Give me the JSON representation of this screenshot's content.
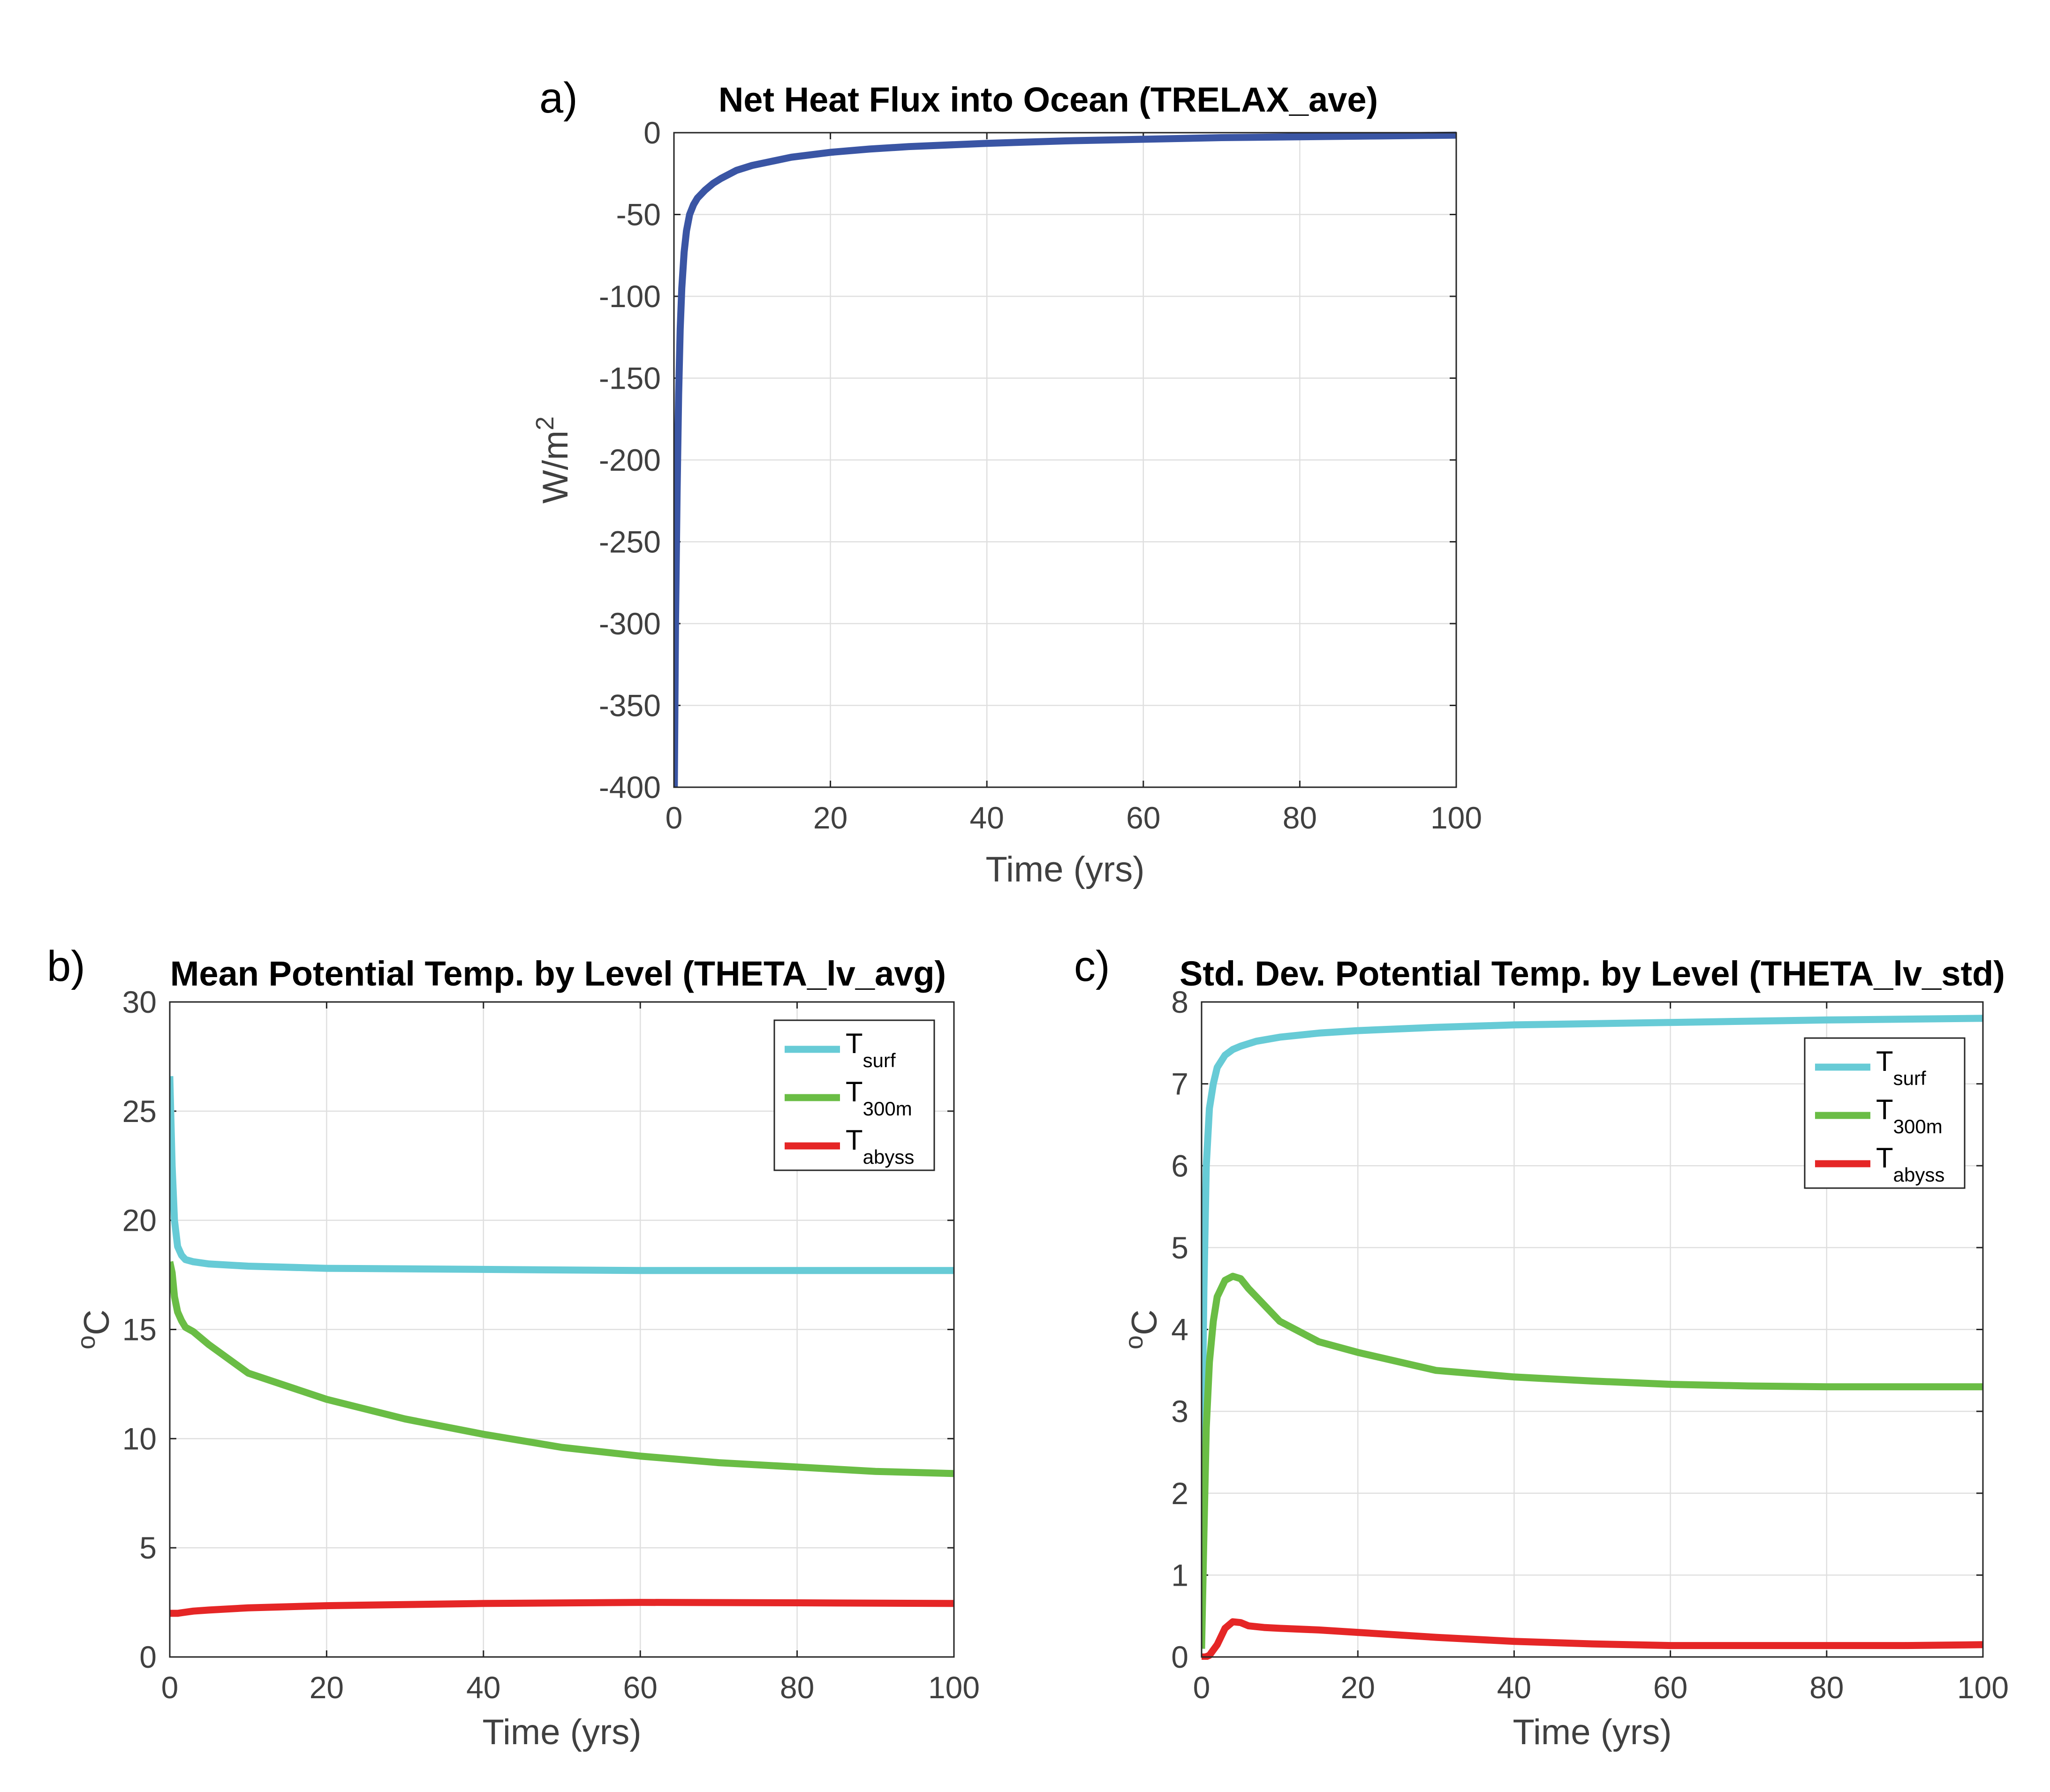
{
  "chart_data": [
    {
      "panel_label": "a)",
      "type": "line",
      "title": "Net Heat Flux into Ocean (TRELAX_ave)",
      "xlabel": "Time (yrs)",
      "ylabel": "W/m",
      "ylabel_sup": "2",
      "xlim": [
        0,
        100
      ],
      "ylim": [
        -400,
        0
      ],
      "xticks": [
        0,
        20,
        40,
        60,
        80,
        100
      ],
      "yticks": [
        0,
        -50,
        -100,
        -150,
        -200,
        -250,
        -300,
        -350,
        -400
      ],
      "grid": true,
      "legend": null,
      "series": [
        {
          "color": "#3a55a4",
          "x": [
            0.05,
            0.2,
            0.4,
            0.6,
            0.8,
            1,
            1.3,
            1.6,
            2,
            2.5,
            3,
            4,
            5,
            6,
            8,
            10,
            12,
            15,
            20,
            25,
            30,
            40,
            50,
            60,
            70,
            80,
            90,
            100
          ],
          "y": [
            -400,
            -300,
            -220,
            -160,
            -120,
            -95,
            -73,
            -60,
            -50,
            -44,
            -40,
            -35,
            -31,
            -28,
            -23,
            -20,
            -18,
            -15,
            -12,
            -10,
            -8.5,
            -6.5,
            -5,
            -4,
            -3,
            -2.5,
            -2,
            -1.5
          ]
        }
      ]
    },
    {
      "panel_label": "b)",
      "type": "line",
      "title": "Mean Potential Temp. by Level (THETA_lv_avg)",
      "xlabel": "Time (yrs)",
      "ylabel": "C",
      "ylabel_sup": "o",
      "xlim": [
        0,
        100
      ],
      "ylim": [
        0,
        30
      ],
      "xticks": [
        0,
        20,
        40,
        60,
        80,
        100
      ],
      "yticks": [
        0,
        5,
        10,
        15,
        20,
        25,
        30
      ],
      "grid": true,
      "legend": "top-right",
      "series": [
        {
          "name": "T",
          "name_sub": "surf",
          "color": "#67cbd6",
          "x": [
            0,
            0.3,
            0.6,
            1,
            1.5,
            2,
            3,
            5,
            10,
            20,
            40,
            60,
            80,
            100
          ],
          "y": [
            26.6,
            22.5,
            20,
            18.8,
            18.4,
            18.2,
            18.1,
            18,
            17.9,
            17.8,
            17.75,
            17.7,
            17.7,
            17.7
          ]
        },
        {
          "name": "T",
          "name_sub": "300m",
          "color": "#6abd45",
          "x": [
            0,
            0.3,
            0.6,
            1,
            1.5,
            2,
            3,
            5,
            10,
            20,
            30,
            40,
            50,
            60,
            70,
            80,
            90,
            100
          ],
          "y": [
            18.1,
            17.6,
            16.5,
            15.8,
            15.4,
            15.1,
            14.9,
            14.3,
            13,
            11.8,
            10.9,
            10.2,
            9.6,
            9.2,
            8.9,
            8.7,
            8.5,
            8.4
          ]
        },
        {
          "name": "T",
          "name_sub": "abyss",
          "color": "#e52626",
          "x": [
            0,
            1,
            2,
            3,
            5,
            10,
            20,
            40,
            60,
            80,
            100
          ],
          "y": [
            2.0,
            2.0,
            2.05,
            2.1,
            2.15,
            2.25,
            2.35,
            2.45,
            2.5,
            2.48,
            2.45
          ]
        }
      ]
    },
    {
      "panel_label": "c)",
      "type": "line",
      "title": "Std. Dev. Potential Temp. by Level (THETA_lv_std)",
      "xlabel": "Time (yrs)",
      "ylabel": "C",
      "ylabel_sup": "o",
      "xlim": [
        0,
        100
      ],
      "ylim": [
        0,
        8
      ],
      "xticks": [
        0,
        20,
        40,
        60,
        80,
        100
      ],
      "yticks": [
        0,
        1,
        2,
        3,
        4,
        5,
        6,
        7,
        8
      ],
      "grid": true,
      "legend": "top-right",
      "series": [
        {
          "name": "T",
          "name_sub": "surf",
          "color": "#67cbd6",
          "x": [
            0,
            0.3,
            0.6,
            1,
            1.5,
            2,
            3,
            4,
            5,
            7,
            10,
            15,
            20,
            30,
            40,
            60,
            80,
            100
          ],
          "y": [
            2.3,
            4.5,
            6.0,
            6.7,
            7.0,
            7.2,
            7.35,
            7.42,
            7.46,
            7.52,
            7.57,
            7.62,
            7.65,
            7.69,
            7.72,
            7.75,
            7.78,
            7.8
          ]
        },
        {
          "name": "T",
          "name_sub": "300m",
          "color": "#6abd45",
          "x": [
            0,
            0.3,
            0.6,
            1,
            1.5,
            2,
            3,
            4,
            5,
            6,
            8,
            10,
            15,
            20,
            30,
            40,
            50,
            60,
            70,
            80,
            90,
            100
          ],
          "y": [
            0.1,
            1.5,
            2.8,
            3.6,
            4.1,
            4.4,
            4.6,
            4.65,
            4.62,
            4.5,
            4.3,
            4.1,
            3.85,
            3.72,
            3.5,
            3.42,
            3.37,
            3.33,
            3.31,
            3.3,
            3.3,
            3.3
          ]
        },
        {
          "name": "T",
          "name_sub": "abyss",
          "color": "#e52626",
          "x": [
            0,
            0.5,
            1,
            2,
            3,
            4,
            5,
            6,
            8,
            10,
            15,
            20,
            30,
            40,
            50,
            60,
            70,
            80,
            90,
            100
          ],
          "y": [
            0,
            0.0,
            0.02,
            0.15,
            0.35,
            0.43,
            0.42,
            0.38,
            0.36,
            0.35,
            0.33,
            0.3,
            0.24,
            0.19,
            0.16,
            0.14,
            0.14,
            0.14,
            0.14,
            0.15
          ]
        }
      ]
    }
  ]
}
